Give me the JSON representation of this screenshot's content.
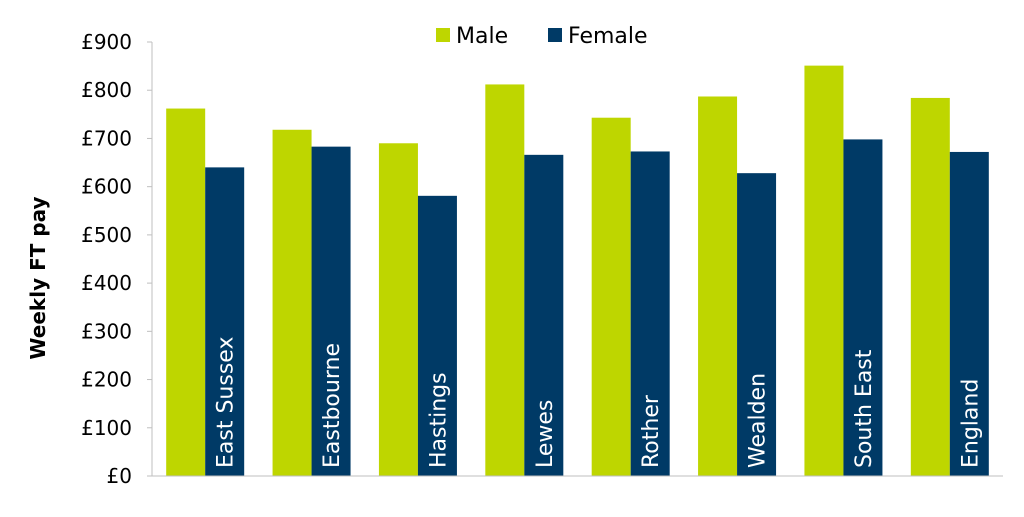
{
  "chart_data": {
    "type": "bar",
    "ylabel": "Weekly FT pay",
    "yticks": [
      "£0",
      "£100",
      "£200",
      "£300",
      "£400",
      "£500",
      "£600",
      "£700",
      "£800",
      "£900"
    ],
    "ylim": [
      0,
      900
    ],
    "grid": false,
    "legend_position": "top-center",
    "categories": [
      "East Sussex",
      "Eastbourne",
      "Hastings",
      "Lewes",
      "Rother",
      "Wealden",
      "South East",
      "England"
    ],
    "series": [
      {
        "name": "Male",
        "color": "#bed600",
        "values": [
          762,
          718,
          690,
          812,
          743,
          787,
          851,
          784
        ]
      },
      {
        "name": "Female",
        "color": "#003a66",
        "values": [
          640,
          683,
          581,
          666,
          673,
          628,
          698,
          672
        ]
      }
    ]
  }
}
